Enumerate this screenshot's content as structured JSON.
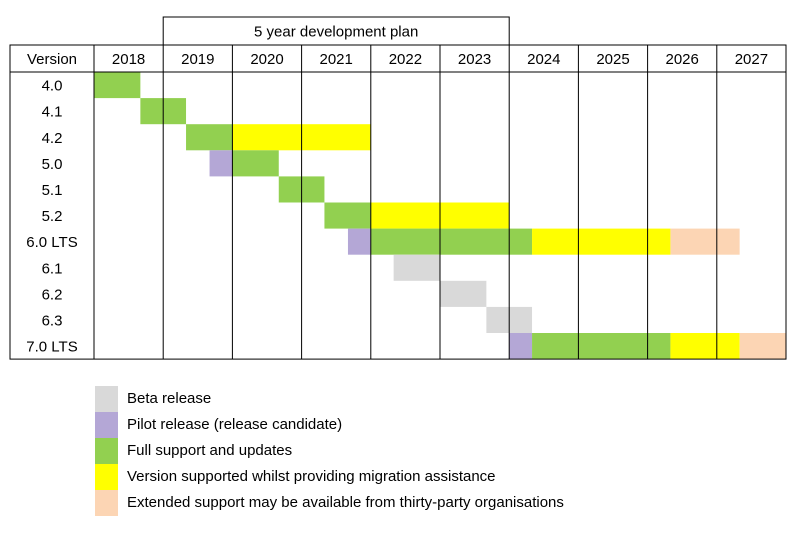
{
  "chart_data": {
    "type": "gantt",
    "plan_label": "5 year development plan",
    "version_header": "Version",
    "years": [
      "2018",
      "2019",
      "2020",
      "2021",
      "2022",
      "2023",
      "2024",
      "2025",
      "2026",
      "2027"
    ],
    "versions": [
      "4.0",
      "4.1",
      "4.2",
      "5.0",
      "5.1",
      "5.2",
      "6.0 LTS",
      "6.1",
      "6.2",
      "6.3",
      "7.0 LTS"
    ],
    "colors": {
      "beta": "#d9d9d9",
      "pilot": "#b4a7d6",
      "full": "#92d050",
      "migration": "#ffff00",
      "extended": "#fcd5b4"
    },
    "bars": [
      {
        "version": "4.0",
        "phase": "full",
        "start": 2018.0,
        "end": 2018.67
      },
      {
        "version": "4.1",
        "phase": "full",
        "start": 2018.67,
        "end": 2019.33
      },
      {
        "version": "4.2",
        "phase": "full",
        "start": 2019.33,
        "end": 2020.0
      },
      {
        "version": "4.2",
        "phase": "migration",
        "start": 2020.0,
        "end": 2022.0
      },
      {
        "version": "5.0",
        "phase": "pilot",
        "start": 2019.67,
        "end": 2020.0
      },
      {
        "version": "5.0",
        "phase": "full",
        "start": 2020.0,
        "end": 2020.67
      },
      {
        "version": "5.1",
        "phase": "full",
        "start": 2020.67,
        "end": 2021.33
      },
      {
        "version": "5.2",
        "phase": "full",
        "start": 2021.33,
        "end": 2022.0
      },
      {
        "version": "5.2",
        "phase": "migration",
        "start": 2022.0,
        "end": 2024.0
      },
      {
        "version": "6.0 LTS",
        "phase": "pilot",
        "start": 2021.67,
        "end": 2022.0
      },
      {
        "version": "6.0 LTS",
        "phase": "full",
        "start": 2022.0,
        "end": 2024.33
      },
      {
        "version": "6.0 LTS",
        "phase": "migration",
        "start": 2024.33,
        "end": 2026.33
      },
      {
        "version": "6.0 LTS",
        "phase": "extended",
        "start": 2026.33,
        "end": 2027.33
      },
      {
        "version": "6.1",
        "phase": "beta",
        "start": 2022.33,
        "end": 2023.0
      },
      {
        "version": "6.2",
        "phase": "beta",
        "start": 2023.0,
        "end": 2023.67
      },
      {
        "version": "6.3",
        "phase": "beta",
        "start": 2023.67,
        "end": 2024.33
      },
      {
        "version": "7.0 LTS",
        "phase": "pilot",
        "start": 2024.0,
        "end": 2024.33
      },
      {
        "version": "7.0 LTS",
        "phase": "full",
        "start": 2024.33,
        "end": 2026.33
      },
      {
        "version": "7.0 LTS",
        "phase": "migration",
        "start": 2026.33,
        "end": 2027.33
      },
      {
        "version": "7.0 LTS",
        "phase": "extended",
        "start": 2027.33,
        "end": 2028.0
      }
    ],
    "plan_range": [
      2019,
      2024
    ],
    "legend": [
      {
        "phase": "beta",
        "label": "Beta release"
      },
      {
        "phase": "pilot",
        "label": "Pilot release  (release candidate)"
      },
      {
        "phase": "full",
        "label": "Full support and updates"
      },
      {
        "phase": "migration",
        "label": "Version supported whilst providing migration assistance"
      },
      {
        "phase": "extended",
        "label": "Extended support may be available from thirty-party organisations"
      }
    ]
  }
}
